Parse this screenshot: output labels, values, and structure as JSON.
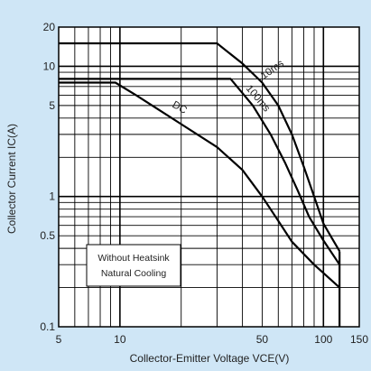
{
  "chart_data": {
    "type": "line",
    "xscale": "log",
    "yscale": "log",
    "xlim": [
      5,
      150
    ],
    "ylim": [
      0.1,
      20
    ],
    "x_ticks": [
      {
        "value": 5,
        "label": "5"
      },
      {
        "value": 10,
        "label": "10"
      },
      {
        "value": 50,
        "label": "50"
      },
      {
        "value": 100,
        "label": "100"
      },
      {
        "value": 150,
        "label": "150"
      }
    ],
    "y_ticks": [
      {
        "value": 0.1,
        "label": "0.1"
      },
      {
        "value": 0.5,
        "label": "0.5"
      },
      {
        "value": 1,
        "label": "1"
      },
      {
        "value": 5,
        "label": "5"
      },
      {
        "value": 10,
        "label": "10"
      },
      {
        "value": 20,
        "label": "20"
      }
    ],
    "xlabel": "Collector-Emitter Voltage VCE(V)",
    "ylabel": "Collector Current IC(A)",
    "grid": true,
    "series": [
      {
        "name": "10ms",
        "points": [
          [
            5,
            15
          ],
          [
            30,
            15
          ],
          [
            40,
            10.5
          ],
          [
            50,
            7.5
          ],
          [
            60,
            5
          ],
          [
            70,
            3
          ],
          [
            80,
            1.7
          ],
          [
            90,
            1
          ],
          [
            100,
            0.62
          ],
          [
            110,
            0.48
          ],
          [
            120,
            0.38
          ]
        ]
      },
      {
        "name": "100ms",
        "points": [
          [
            5,
            8
          ],
          [
            35,
            8
          ],
          [
            45,
            5
          ],
          [
            55,
            3
          ],
          [
            65,
            1.8
          ],
          [
            75,
            1.1
          ],
          [
            85,
            0.7
          ],
          [
            100,
            0.46
          ],
          [
            120,
            0.3
          ]
        ]
      },
      {
        "name": "DC",
        "points": [
          [
            5,
            7.5
          ],
          [
            9.5,
            7.5
          ],
          [
            12,
            6
          ],
          [
            20,
            3.6
          ],
          [
            30,
            2.4
          ],
          [
            40,
            1.6
          ],
          [
            50,
            1.0
          ],
          [
            60,
            0.65
          ],
          [
            70,
            0.45
          ],
          [
            90,
            0.3
          ],
          [
            120,
            0.2
          ]
        ]
      }
    ],
    "right_edge": {
      "x": 120,
      "y_from": 0.38,
      "y_to": 0.1
    },
    "annotation": {
      "line1": "Without Heatsink",
      "line2": "Natural Cooling"
    }
  }
}
